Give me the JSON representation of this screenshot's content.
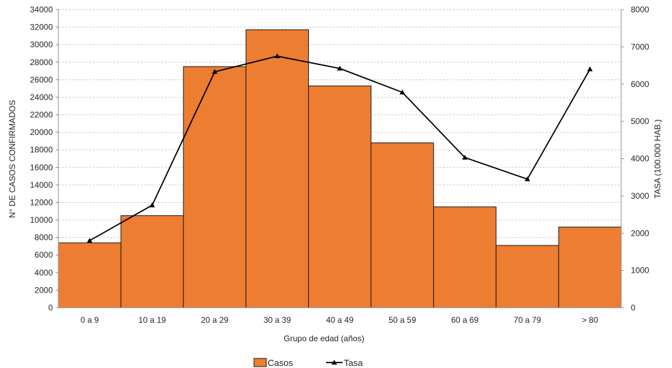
{
  "chart_data": {
    "type": "bar",
    "categories": [
      "0 a 9",
      "10 a 19",
      "20 a 29",
      "30 a 39",
      "40 a 49",
      "50 a 59",
      "60 a 69",
      "70 a 79",
      "> 80"
    ],
    "series": [
      {
        "name": "Casos",
        "type": "bar",
        "axis": "left",
        "color": "#ED7D31",
        "values": [
          7400,
          10500,
          27500,
          31700,
          25300,
          18800,
          11500,
          7100,
          9200
        ]
      },
      {
        "name": "Tasa",
        "type": "line",
        "axis": "right",
        "color": "#000000",
        "marker": "triangle",
        "values": [
          1800,
          2750,
          6330,
          6750,
          6420,
          5780,
          4030,
          3450,
          6400
        ]
      }
    ],
    "xlabel": "Grupo de edad (años)",
    "ylabel": "N° DE CASOS CONFIRMADOS",
    "y2label": "TASA (100.000 HAB.)",
    "ylim": [
      0,
      34000
    ],
    "y2lim": [
      0,
      8000
    ],
    "yticks": [
      0,
      2000,
      4000,
      6000,
      8000,
      10000,
      12000,
      14000,
      16000,
      18000,
      20000,
      22000,
      24000,
      26000,
      28000,
      30000,
      32000,
      34000
    ],
    "y2ticks": [
      0,
      1000,
      2000,
      3000,
      4000,
      5000,
      6000,
      7000,
      8000
    ],
    "grid": true,
    "legend_position": "bottom"
  }
}
